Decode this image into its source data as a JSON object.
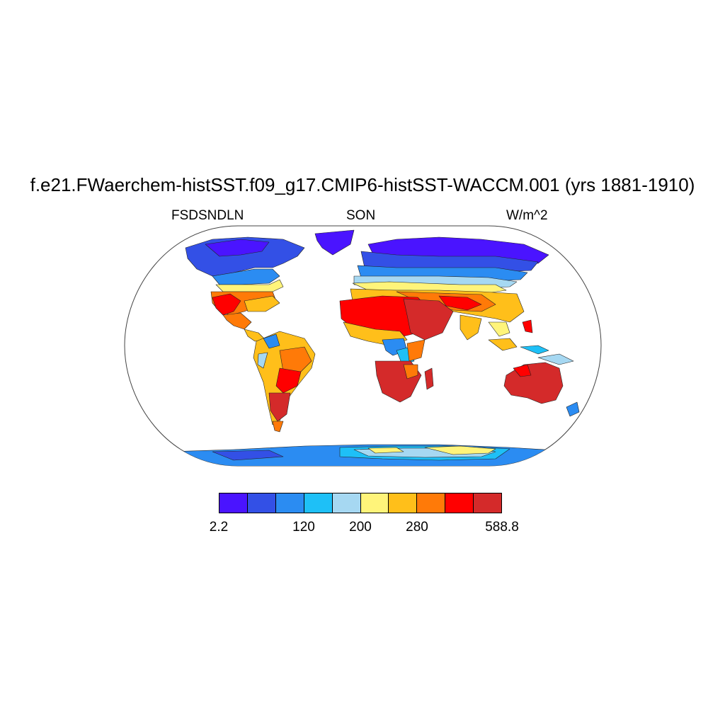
{
  "title": "f.e21.FWaerchem-histSST.f09_g17.CMIP6-histSST-WACCM.001 (yrs 1881-1910)",
  "left_label": "FSDSNDLN",
  "center_label": "SON",
  "right_label": "W/m^2",
  "colorbar": {
    "colors": [
      "#4a14ff",
      "#3350e6",
      "#2b8cf2",
      "#1ec0f7",
      "#a6d8f2",
      "#fff47a",
      "#ffbf1a",
      "#ff7a08",
      "#ff0000",
      "#d42a2a"
    ],
    "ticks": [
      {
        "label": "2.2",
        "index": 0
      },
      {
        "label": "120",
        "index": 3
      },
      {
        "label": "200",
        "index": 5
      },
      {
        "label": "280",
        "index": 7
      },
      {
        "label": "588.8",
        "index": 10
      }
    ]
  },
  "map": {
    "projection": "robinson",
    "field": "FSDSNDLN",
    "season": "SON"
  }
}
